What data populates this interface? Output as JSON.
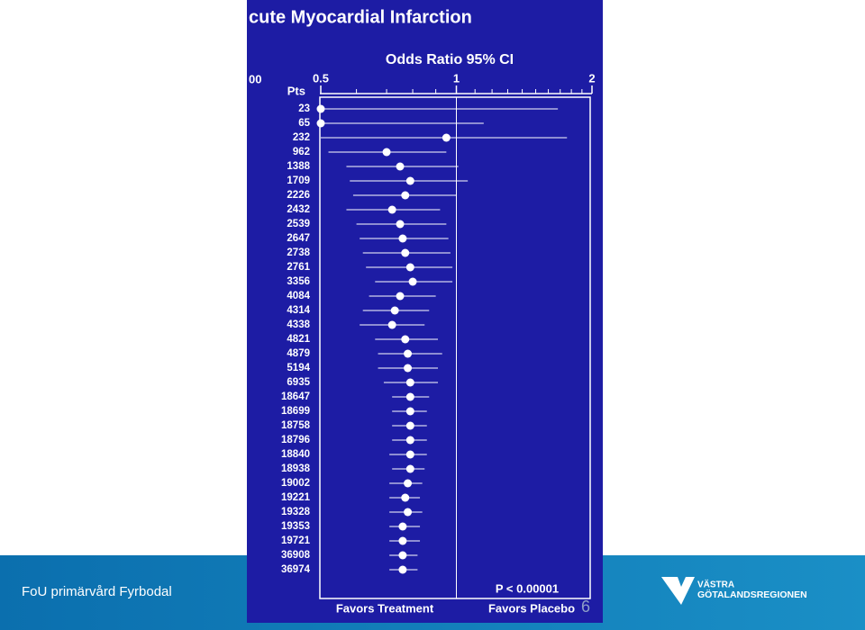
{
  "footer": {
    "text": "FoU primärvård Fyrbodal",
    "page_number": "6",
    "logo_line1": "VÄSTRA",
    "logo_line2": "GÖTALANDSREGIONEN"
  },
  "chart_data": {
    "type": "forest",
    "title": "cute Myocardial Infarction",
    "subtitle": "Odds Ratio 95% CI",
    "left_axis_label": "00",
    "column_header": "Pts",
    "p_value": "P < 0.00001",
    "left_label": "Favors Treatment",
    "right_label": "Favors Placebo",
    "log_x": true,
    "xlim": [
      0.5,
      2
    ],
    "xticks": [
      0.5,
      1,
      2
    ],
    "minor_xticks": [
      0.6,
      0.7,
      0.8,
      0.9,
      1.1,
      1.2,
      1.3,
      1.4,
      1.5,
      1.6,
      1.7,
      1.8,
      1.9
    ],
    "reference": 1,
    "color": "#ffffff",
    "background": "#1d1ca4",
    "categories": [
      "23",
      "65",
      "232",
      "962",
      "1388",
      "1709",
      "2226",
      "2432",
      "2539",
      "2647",
      "2738",
      "2761",
      "3356",
      "4084",
      "4314",
      "4338",
      "4821",
      "4879",
      "5194",
      "6935",
      "18647",
      "18699",
      "18758",
      "18796",
      "18840",
      "18938",
      "19002",
      "19221",
      "19328",
      "19353",
      "19721",
      "36908",
      "36974"
    ],
    "values": [
      0.5,
      0.5,
      0.95,
      0.7,
      0.75,
      0.79,
      0.77,
      0.72,
      0.75,
      0.76,
      0.77,
      0.79,
      0.8,
      0.75,
      0.73,
      0.72,
      0.77,
      0.78,
      0.78,
      0.79,
      0.79,
      0.79,
      0.79,
      0.79,
      0.79,
      0.79,
      0.78,
      0.77,
      0.78,
      0.76,
      0.76,
      0.76,
      0.76
    ],
    "lower": [
      0.5,
      0.5,
      0.5,
      0.52,
      0.57,
      0.58,
      0.59,
      0.57,
      0.6,
      0.61,
      0.62,
      0.63,
      0.66,
      0.64,
      0.62,
      0.61,
      0.66,
      0.67,
      0.67,
      0.69,
      0.72,
      0.72,
      0.72,
      0.72,
      0.71,
      0.72,
      0.71,
      0.71,
      0.71,
      0.71,
      0.71,
      0.71,
      0.71
    ],
    "upper": [
      1.68,
      1.15,
      1.76,
      0.95,
      1.01,
      1.06,
      1.0,
      0.92,
      0.95,
      0.96,
      0.97,
      0.98,
      0.98,
      0.9,
      0.87,
      0.85,
      0.91,
      0.93,
      0.91,
      0.91,
      0.87,
      0.86,
      0.86,
      0.86,
      0.86,
      0.85,
      0.84,
      0.83,
      0.84,
      0.83,
      0.83,
      0.82,
      0.82
    ]
  }
}
